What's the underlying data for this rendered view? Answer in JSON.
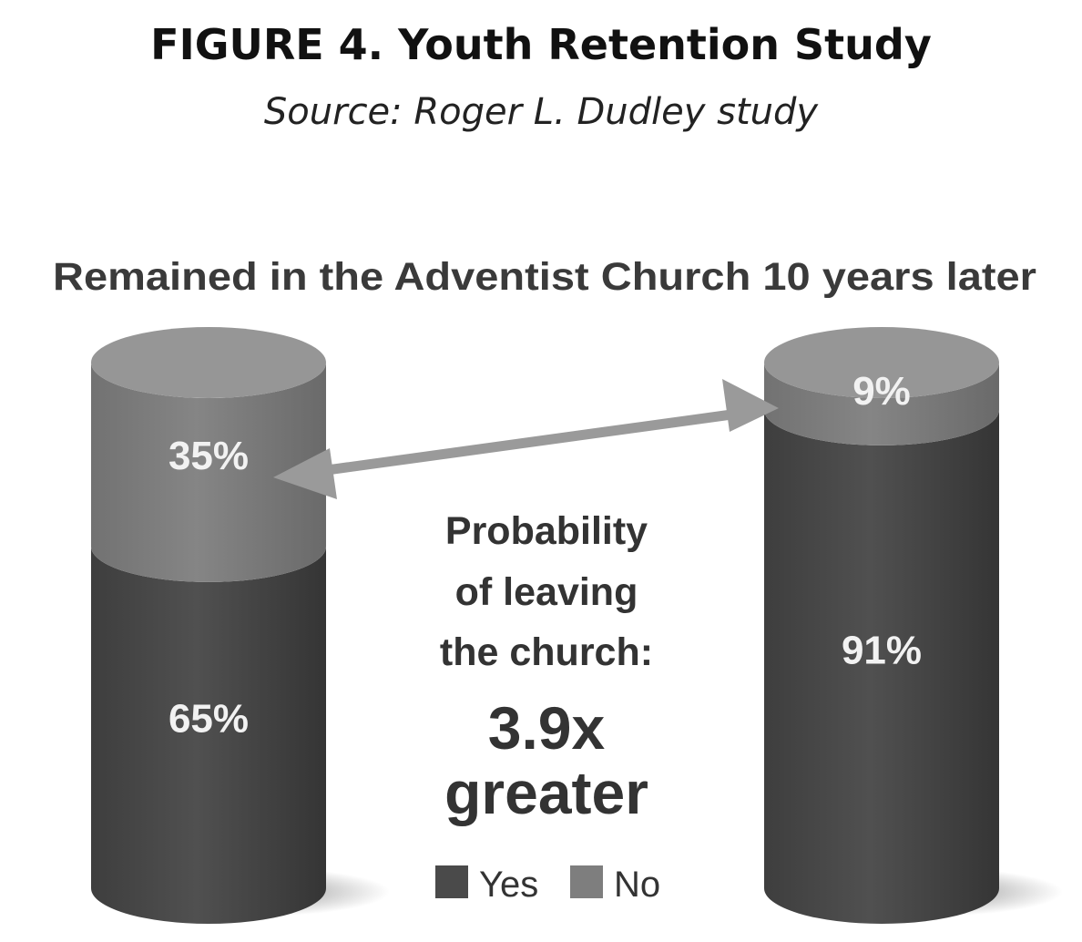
{
  "figure": {
    "title": "FIGURE 4. Youth Retention Study",
    "subtitle": "Source: Roger L. Dudley study"
  },
  "chart_data": {
    "type": "bar",
    "title": "Remained in the Adventist Church 10 years later",
    "stacked": true,
    "categories": [
      "",
      ""
    ],
    "series": [
      {
        "name": "Yes",
        "values": [
          65,
          91
        ],
        "labels": [
          "65%",
          "91%"
        ],
        "color": "#4a4a4a"
      },
      {
        "name": "No",
        "values": [
          35,
          9
        ],
        "labels": [
          "35%",
          "9%"
        ],
        "color": "#7e7e7e"
      }
    ],
    "ylim": [
      0,
      100
    ],
    "legend": "bottom-center",
    "annotation": {
      "lines": [
        "Probability",
        "of leaving",
        "the church:"
      ],
      "emphasis": [
        "3.9x",
        "greater"
      ]
    }
  }
}
